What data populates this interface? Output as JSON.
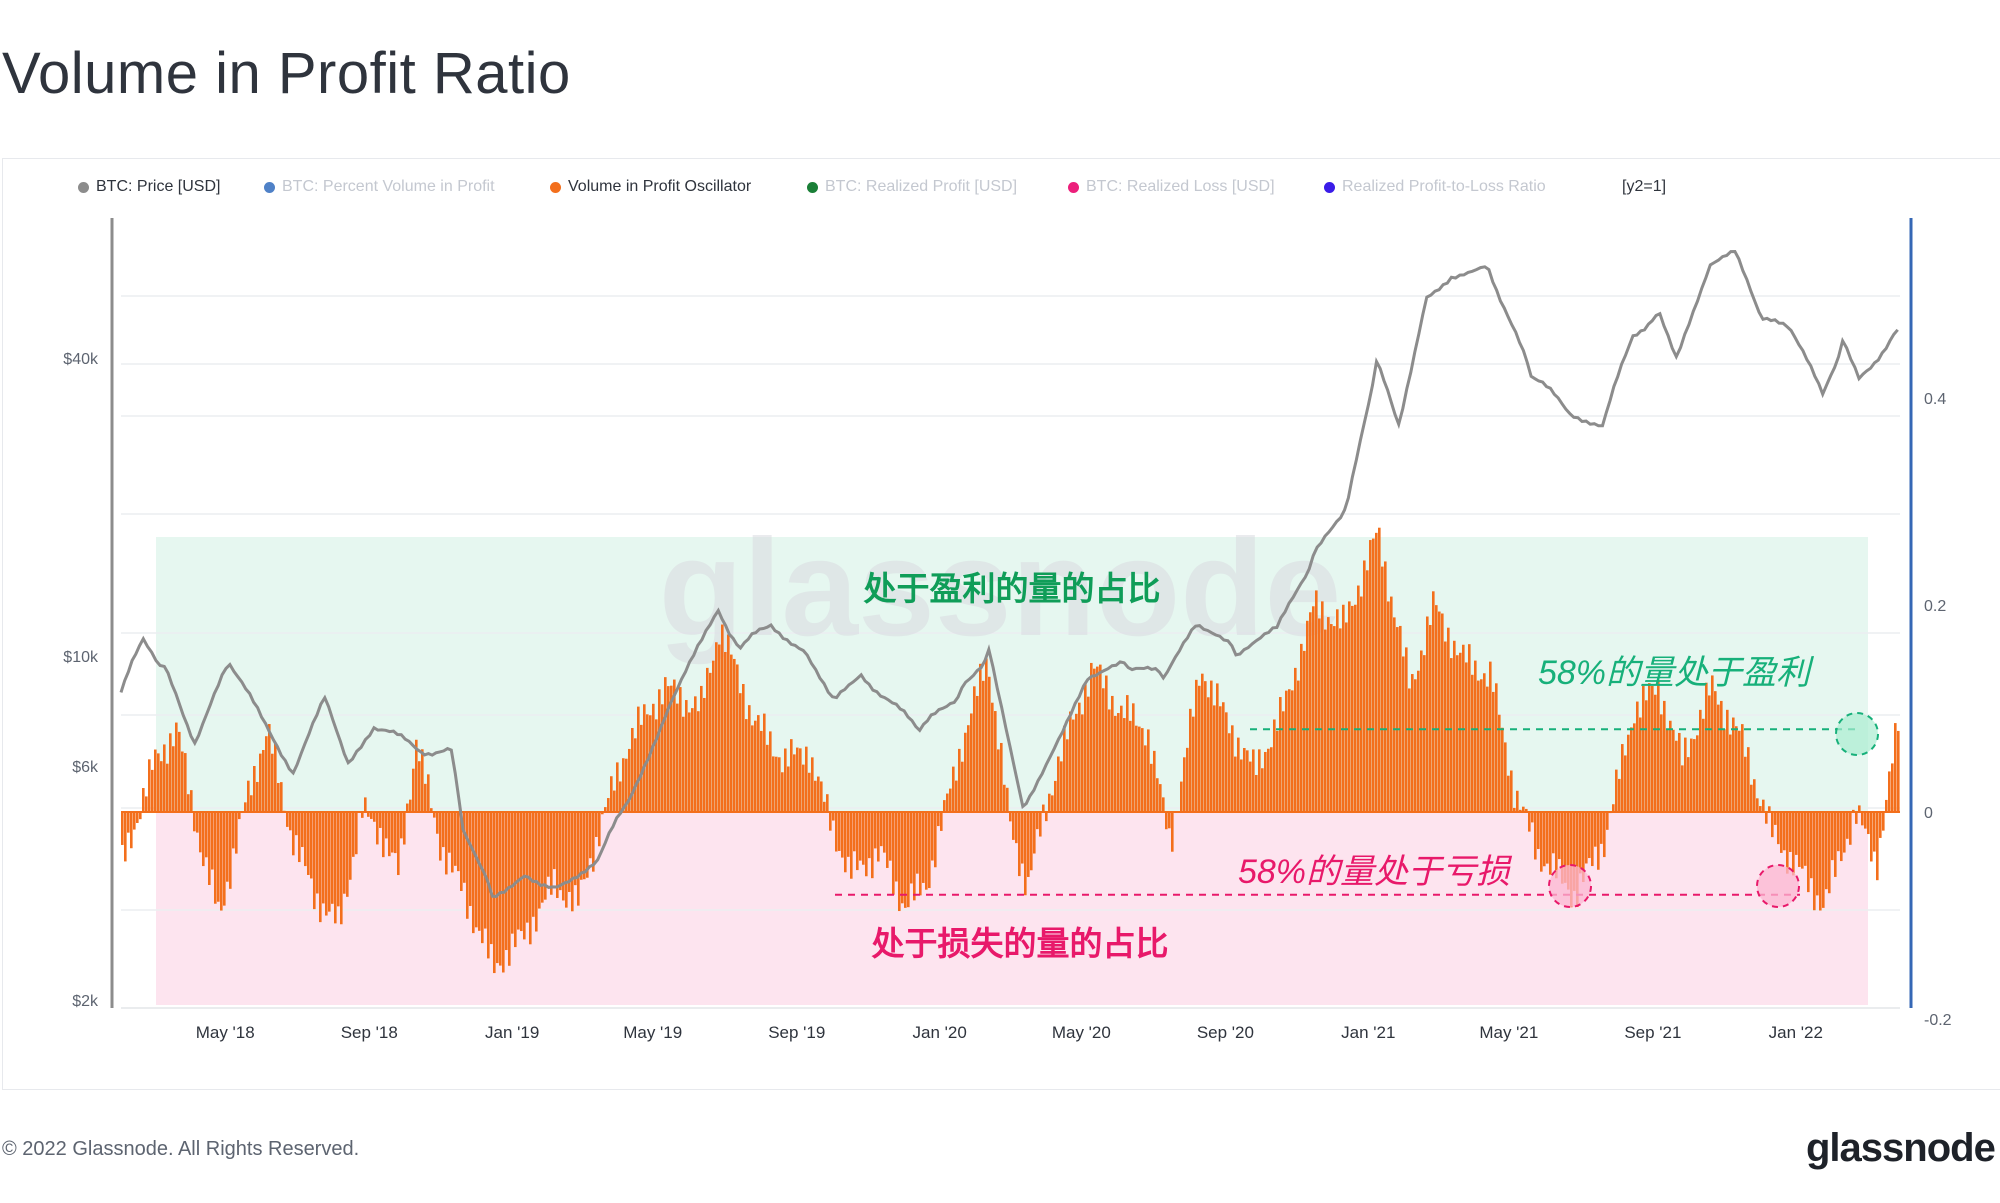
{
  "title": "Volume in Profit Ratio",
  "legend": {
    "btc_price": "BTC: Price [USD]",
    "percent_volume": "BTC: Percent Volume in Profit",
    "oscillator": "Volume in Profit Oscillator",
    "realized_profit": "BTC: Realized Profit [USD]",
    "realized_loss": "BTC: Realized Loss [USD]",
    "pl_ratio": "Realized Profit-to-Loss Ratio",
    "y2": "[y2=1]"
  },
  "colors": {
    "price": "#8c8c8c",
    "percent_volume": "#4f81c7",
    "oscillator": "#f36f1c",
    "realized_profit": "#1a7f37",
    "realized_loss": "#ec1f7b",
    "pl_ratio": "#3a1ce8",
    "profit_zone": "#e6f7f0",
    "loss_zone": "#fde4ef",
    "profit_text": "#0f9d58",
    "loss_text": "#e8196a",
    "right_axis": "#3567b5"
  },
  "annotations": {
    "profit_zone_label": "处于盈利的量的占比",
    "loss_zone_label": "处于损失的量的占比",
    "profit_58": "58%的量处于盈利",
    "loss_58": "58%的量处于亏损"
  },
  "watermark": "glassnode",
  "footer": {
    "copyright": "© 2022 Glassnode. All Rights Reserved.",
    "logo": "glassnode"
  },
  "chart_data": {
    "type": "line",
    "x_range": [
      "2018-02-01",
      "2022-03-31"
    ],
    "x_ticks": [
      "May '18",
      "Sep '18",
      "Jan '19",
      "May '19",
      "Sep '19",
      "Jan '20",
      "May '20",
      "Sep '20",
      "Jan '21",
      "May '21",
      "Sep '21",
      "Jan '22"
    ],
    "y_left": {
      "scale": "log",
      "ticks": [
        "$2k",
        "$6k",
        "$10k",
        "$40k"
      ],
      "range": [
        2000,
        80000
      ]
    },
    "y_right": {
      "scale": "linear",
      "ticks": [
        "0.4",
        "0.2",
        "0",
        "-0.2"
      ],
      "range": [
        -0.2,
        0.44
      ]
    },
    "reference_lines": [
      0.08,
      -0.08
    ],
    "series": [
      {
        "name": "BTC: Price [USD]",
        "axis": "left",
        "points": [
          [
            "2018-02-01",
            8500
          ],
          [
            "2018-02-20",
            11000
          ],
          [
            "2018-03-10",
            9500
          ],
          [
            "2018-04-05",
            6800
          ],
          [
            "2018-05-05",
            9800
          ],
          [
            "2018-06-01",
            7500
          ],
          [
            "2018-06-28",
            5900
          ],
          [
            "2018-07-25",
            8200
          ],
          [
            "2018-08-14",
            6200
          ],
          [
            "2018-09-05",
            7300
          ],
          [
            "2018-10-15",
            6500
          ],
          [
            "2018-11-10",
            6400
          ],
          [
            "2018-11-20",
            4500
          ],
          [
            "2018-12-15",
            3300
          ],
          [
            "2019-01-15",
            3600
          ],
          [
            "2019-02-08",
            3400
          ],
          [
            "2019-03-15",
            3900
          ],
          [
            "2019-04-10",
            5100
          ],
          [
            "2019-05-15",
            8000
          ],
          [
            "2019-06-26",
            12500
          ],
          [
            "2019-07-15",
            10500
          ],
          [
            "2019-08-10",
            11800
          ],
          [
            "2019-09-10",
            10200
          ],
          [
            "2019-10-05",
            8200
          ],
          [
            "2019-10-26",
            9300
          ],
          [
            "2019-12-15",
            7100
          ],
          [
            "2020-01-20",
            8600
          ],
          [
            "2020-02-12",
            10300
          ],
          [
            "2020-03-12",
            5000
          ],
          [
            "2020-03-18",
            5300
          ],
          [
            "2020-04-15",
            7000
          ],
          [
            "2020-05-10",
            9300
          ],
          [
            "2020-06-10",
            9700
          ],
          [
            "2020-07-10",
            9200
          ],
          [
            "2020-08-10",
            11800
          ],
          [
            "2020-09-10",
            10300
          ],
          [
            "2020-10-15",
            11400
          ],
          [
            "2020-11-15",
            16000
          ],
          [
            "2020-12-15",
            21000
          ],
          [
            "2021-01-08",
            40000
          ],
          [
            "2021-01-27",
            30500
          ],
          [
            "2021-02-20",
            55000
          ],
          [
            "2021-03-13",
            61000
          ],
          [
            "2021-04-14",
            63000
          ],
          [
            "2021-05-20",
            38000
          ],
          [
            "2021-06-22",
            32000
          ],
          [
            "2021-07-20",
            30000
          ],
          [
            "2021-08-15",
            46000
          ],
          [
            "2021-09-07",
            51000
          ],
          [
            "2021-09-21",
            42000
          ],
          [
            "2021-10-20",
            64000
          ],
          [
            "2021-11-10",
            67000
          ],
          [
            "2021-12-04",
            49000
          ],
          [
            "2021-12-28",
            47000
          ],
          [
            "2022-01-24",
            34500
          ],
          [
            "2022-02-10",
            44000
          ],
          [
            "2022-02-24",
            37000
          ],
          [
            "2022-03-29",
            47000
          ]
        ]
      },
      {
        "name": "Volume in Profit Oscillator",
        "axis": "right",
        "points": [
          [
            "2018-02-01",
            -0.05
          ],
          [
            "2018-03-01",
            0.05
          ],
          [
            "2018-03-20",
            0.08
          ],
          [
            "2018-04-10",
            -0.04
          ],
          [
            "2018-04-25",
            -0.1
          ],
          [
            "2018-05-20",
            0.02
          ],
          [
            "2018-06-05",
            0.08
          ],
          [
            "2018-06-25",
            -0.02
          ],
          [
            "2018-07-15",
            -0.08
          ],
          [
            "2018-08-05",
            -0.11
          ],
          [
            "2018-08-25",
            0.0
          ],
          [
            "2018-09-10",
            -0.02
          ],
          [
            "2018-09-25",
            -0.06
          ],
          [
            "2018-10-10",
            0.07
          ],
          [
            "2018-10-30",
            -0.03
          ],
          [
            "2018-11-20",
            -0.08
          ],
          [
            "2018-12-15",
            -0.15
          ],
          [
            "2019-01-10",
            -0.12
          ],
          [
            "2019-02-05",
            -0.07
          ],
          [
            "2019-02-25",
            -0.09
          ],
          [
            "2019-03-20",
            0.0
          ],
          [
            "2019-04-10",
            0.07
          ],
          [
            "2019-05-10",
            0.12
          ],
          [
            "2019-06-10",
            0.1
          ],
          [
            "2019-06-26",
            0.18
          ],
          [
            "2019-07-25",
            0.09
          ],
          [
            "2019-08-20",
            0.05
          ],
          [
            "2019-09-10",
            0.06
          ],
          [
            "2019-09-26",
            0.0
          ],
          [
            "2019-10-15",
            -0.06
          ],
          [
            "2019-11-10",
            -0.04
          ],
          [
            "2019-12-01",
            -0.09
          ],
          [
            "2019-12-20",
            -0.07
          ],
          [
            "2020-01-15",
            0.05
          ],
          [
            "2020-02-10",
            0.15
          ],
          [
            "2020-03-01",
            -0.02
          ],
          [
            "2020-03-15",
            -0.07
          ],
          [
            "2020-04-10",
            0.05
          ],
          [
            "2020-05-10",
            0.14
          ],
          [
            "2020-06-01",
            0.1
          ],
          [
            "2020-06-25",
            0.08
          ],
          [
            "2020-07-15",
            -0.03
          ],
          [
            "2020-08-10",
            0.14
          ],
          [
            "2020-09-05",
            0.08
          ],
          [
            "2020-09-25",
            0.04
          ],
          [
            "2020-10-20",
            0.1
          ],
          [
            "2020-11-15",
            0.2
          ],
          [
            "2020-12-10",
            0.18
          ],
          [
            "2021-01-08",
            0.27
          ],
          [
            "2021-02-05",
            0.12
          ],
          [
            "2021-02-25",
            0.2
          ],
          [
            "2021-03-20",
            0.15
          ],
          [
            "2021-04-15",
            0.13
          ],
          [
            "2021-05-05",
            0.02
          ],
          [
            "2021-05-25",
            -0.04
          ],
          [
            "2021-06-25",
            -0.08
          ],
          [
            "2021-07-20",
            -0.03
          ],
          [
            "2021-08-15",
            0.1
          ],
          [
            "2021-09-05",
            0.12
          ],
          [
            "2021-09-25",
            0.05
          ],
          [
            "2021-10-20",
            0.12
          ],
          [
            "2021-11-15",
            0.07
          ],
          [
            "2021-12-10",
            -0.02
          ],
          [
            "2022-01-05",
            -0.06
          ],
          [
            "2022-01-24",
            -0.09
          ],
          [
            "2022-02-20",
            0.0
          ],
          [
            "2022-03-10",
            -0.05
          ],
          [
            "2022-03-29",
            0.09
          ]
        ]
      }
    ]
  }
}
